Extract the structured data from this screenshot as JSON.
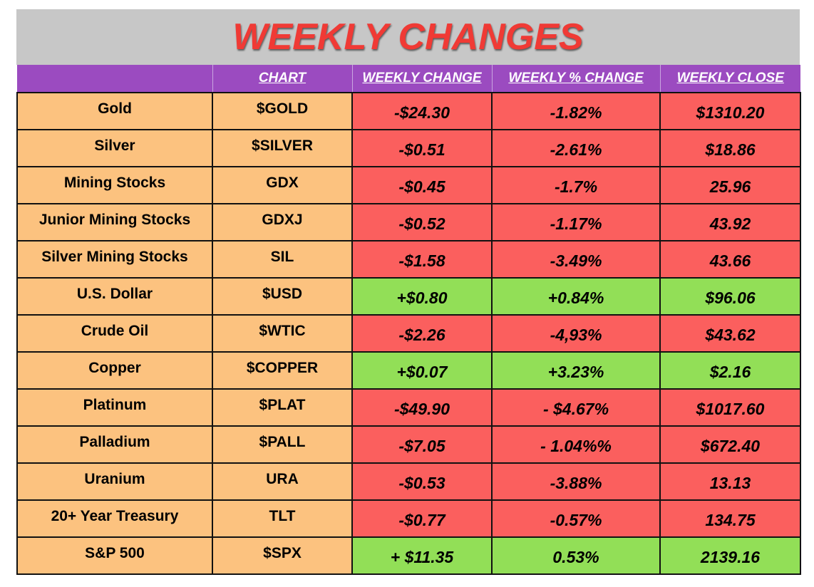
{
  "title": "WEEKLY CHANGES",
  "headers": [
    "",
    "CHART",
    "WEEKLY CHANGE",
    "WEEKLY % CHANGE",
    "WEEKLY CLOSE"
  ],
  "colors": {
    "title_bg": "#c7c7c7",
    "title_text": "#f03a35",
    "header_bg": "#9b4bc0",
    "name_bg": "#fcc27f",
    "negative_bg": "#fb5f5e",
    "positive_bg": "#92df57"
  },
  "rows": [
    {
      "name": "Gold",
      "ticker": "$GOLD",
      "change": "-$24.30",
      "pct": "-1.82%",
      "close": "$1310.20",
      "direction": "down"
    },
    {
      "name": "Silver",
      "ticker": "$SILVER",
      "change": "-$0.51",
      "pct": "-2.61%",
      "close": "$18.86",
      "direction": "down"
    },
    {
      "name": "Mining Stocks",
      "ticker": "GDX",
      "change": "-$0.45",
      "pct": "-1.7%",
      "close": "25.96",
      "direction": "down"
    },
    {
      "name": "Junior Mining Stocks",
      "ticker": "GDXJ",
      "change": "-$0.52",
      "pct": "-1.17%",
      "close": "43.92",
      "direction": "down"
    },
    {
      "name": "Silver Mining Stocks",
      "ticker": "SIL",
      "change": "-$1.58",
      "pct": "-3.49%",
      "close": "43.66",
      "direction": "down"
    },
    {
      "name": "U.S. Dollar",
      "ticker": "$USD",
      "change": "+$0.80",
      "pct": "+0.84%",
      "close": "$96.06",
      "direction": "up"
    },
    {
      "name": "Crude Oil",
      "ticker": "$WTIC",
      "change": "-$2.26",
      "pct": "-4,93%",
      "close": "$43.62",
      "direction": "down"
    },
    {
      "name": "Copper",
      "ticker": "$COPPER",
      "change": "+$0.07",
      "pct": "+3.23%",
      "close": "$2.16",
      "direction": "up"
    },
    {
      "name": "Platinum",
      "ticker": "$PLAT",
      "change": "-$49.90",
      "pct": "- $4.67%",
      "close": "$1017.60",
      "direction": "down"
    },
    {
      "name": "Palladium",
      "ticker": "$PALL",
      "change": "-$7.05",
      "pct": "- 1.04%%",
      "close": "$672.40",
      "direction": "down"
    },
    {
      "name": "Uranium",
      "ticker": "URA",
      "change": "-$0.53",
      "pct": "-3.88%",
      "close": "13.13",
      "direction": "down"
    },
    {
      "name": "20+ Year Treasury",
      "ticker": "TLT",
      "change": "-$0.77",
      "pct": "-0.57%",
      "close": "134.75",
      "direction": "down"
    },
    {
      "name": "S&P 500",
      "ticker": "$SPX",
      "change": "+ $11.35",
      "pct": "0.53%",
      "close": "2139.16",
      "direction": "up"
    }
  ]
}
